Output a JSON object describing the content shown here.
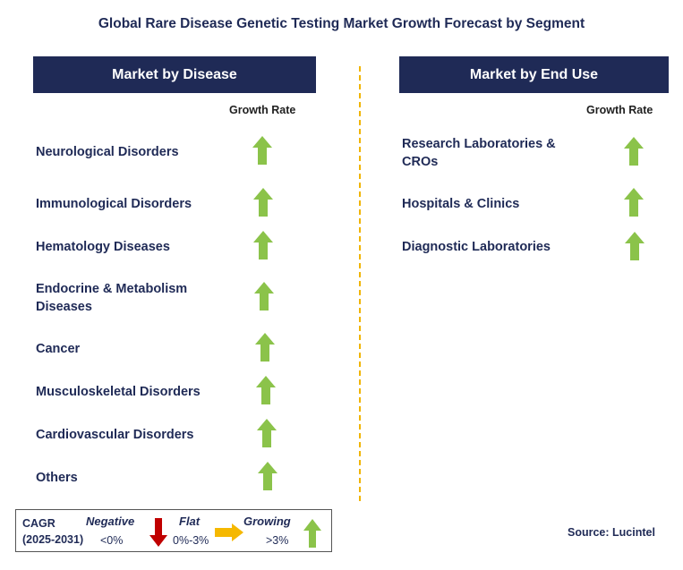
{
  "title": "Global Rare Disease Genetic Testing Market Growth Forecast by Segment",
  "left_panel": {
    "header": "Market by Disease",
    "column_label": "Growth Rate",
    "rows": [
      {
        "label": "Neurological Disorders",
        "trend": "growing"
      },
      {
        "label": "Immunological Disorders",
        "trend": "growing"
      },
      {
        "label": "Hematology Diseases",
        "trend": "growing"
      },
      {
        "label": "Endocrine & Metabolism Diseases",
        "trend": "growing"
      },
      {
        "label": "Cancer",
        "trend": "growing"
      },
      {
        "label": "Musculoskeletal Disorders",
        "trend": "growing"
      },
      {
        "label": "Cardiovascular Disorders",
        "trend": "growing"
      },
      {
        "label": "Others",
        "trend": "growing"
      }
    ]
  },
  "right_panel": {
    "header": "Market by End Use",
    "column_label": "Growth Rate",
    "rows": [
      {
        "label": "Research Laboratories & CROs",
        "trend": "growing"
      },
      {
        "label": "Hospitals & Clinics",
        "trend": "growing"
      },
      {
        "label": "Diagnostic Laboratories",
        "trend": "growing"
      }
    ]
  },
  "legend": {
    "cagr_label": "CAGR",
    "period": "(2025-2031)",
    "negative": {
      "label": "Negative",
      "range": "<0%",
      "icon": "red-down-arrow-icon"
    },
    "flat": {
      "label": "Flat",
      "range": "0%-3%",
      "icon": "yellow-right-arrow-icon"
    },
    "growing": {
      "label": "Growing",
      "range": ">3%",
      "icon": "green-up-arrow-icon"
    }
  },
  "source": "Source: Lucintel",
  "colors": {
    "header_bg": "#1f2a56",
    "growing": "#8bc34a",
    "negative": "#c00000",
    "flat": "#f5b800",
    "divider": "#f0b400"
  }
}
